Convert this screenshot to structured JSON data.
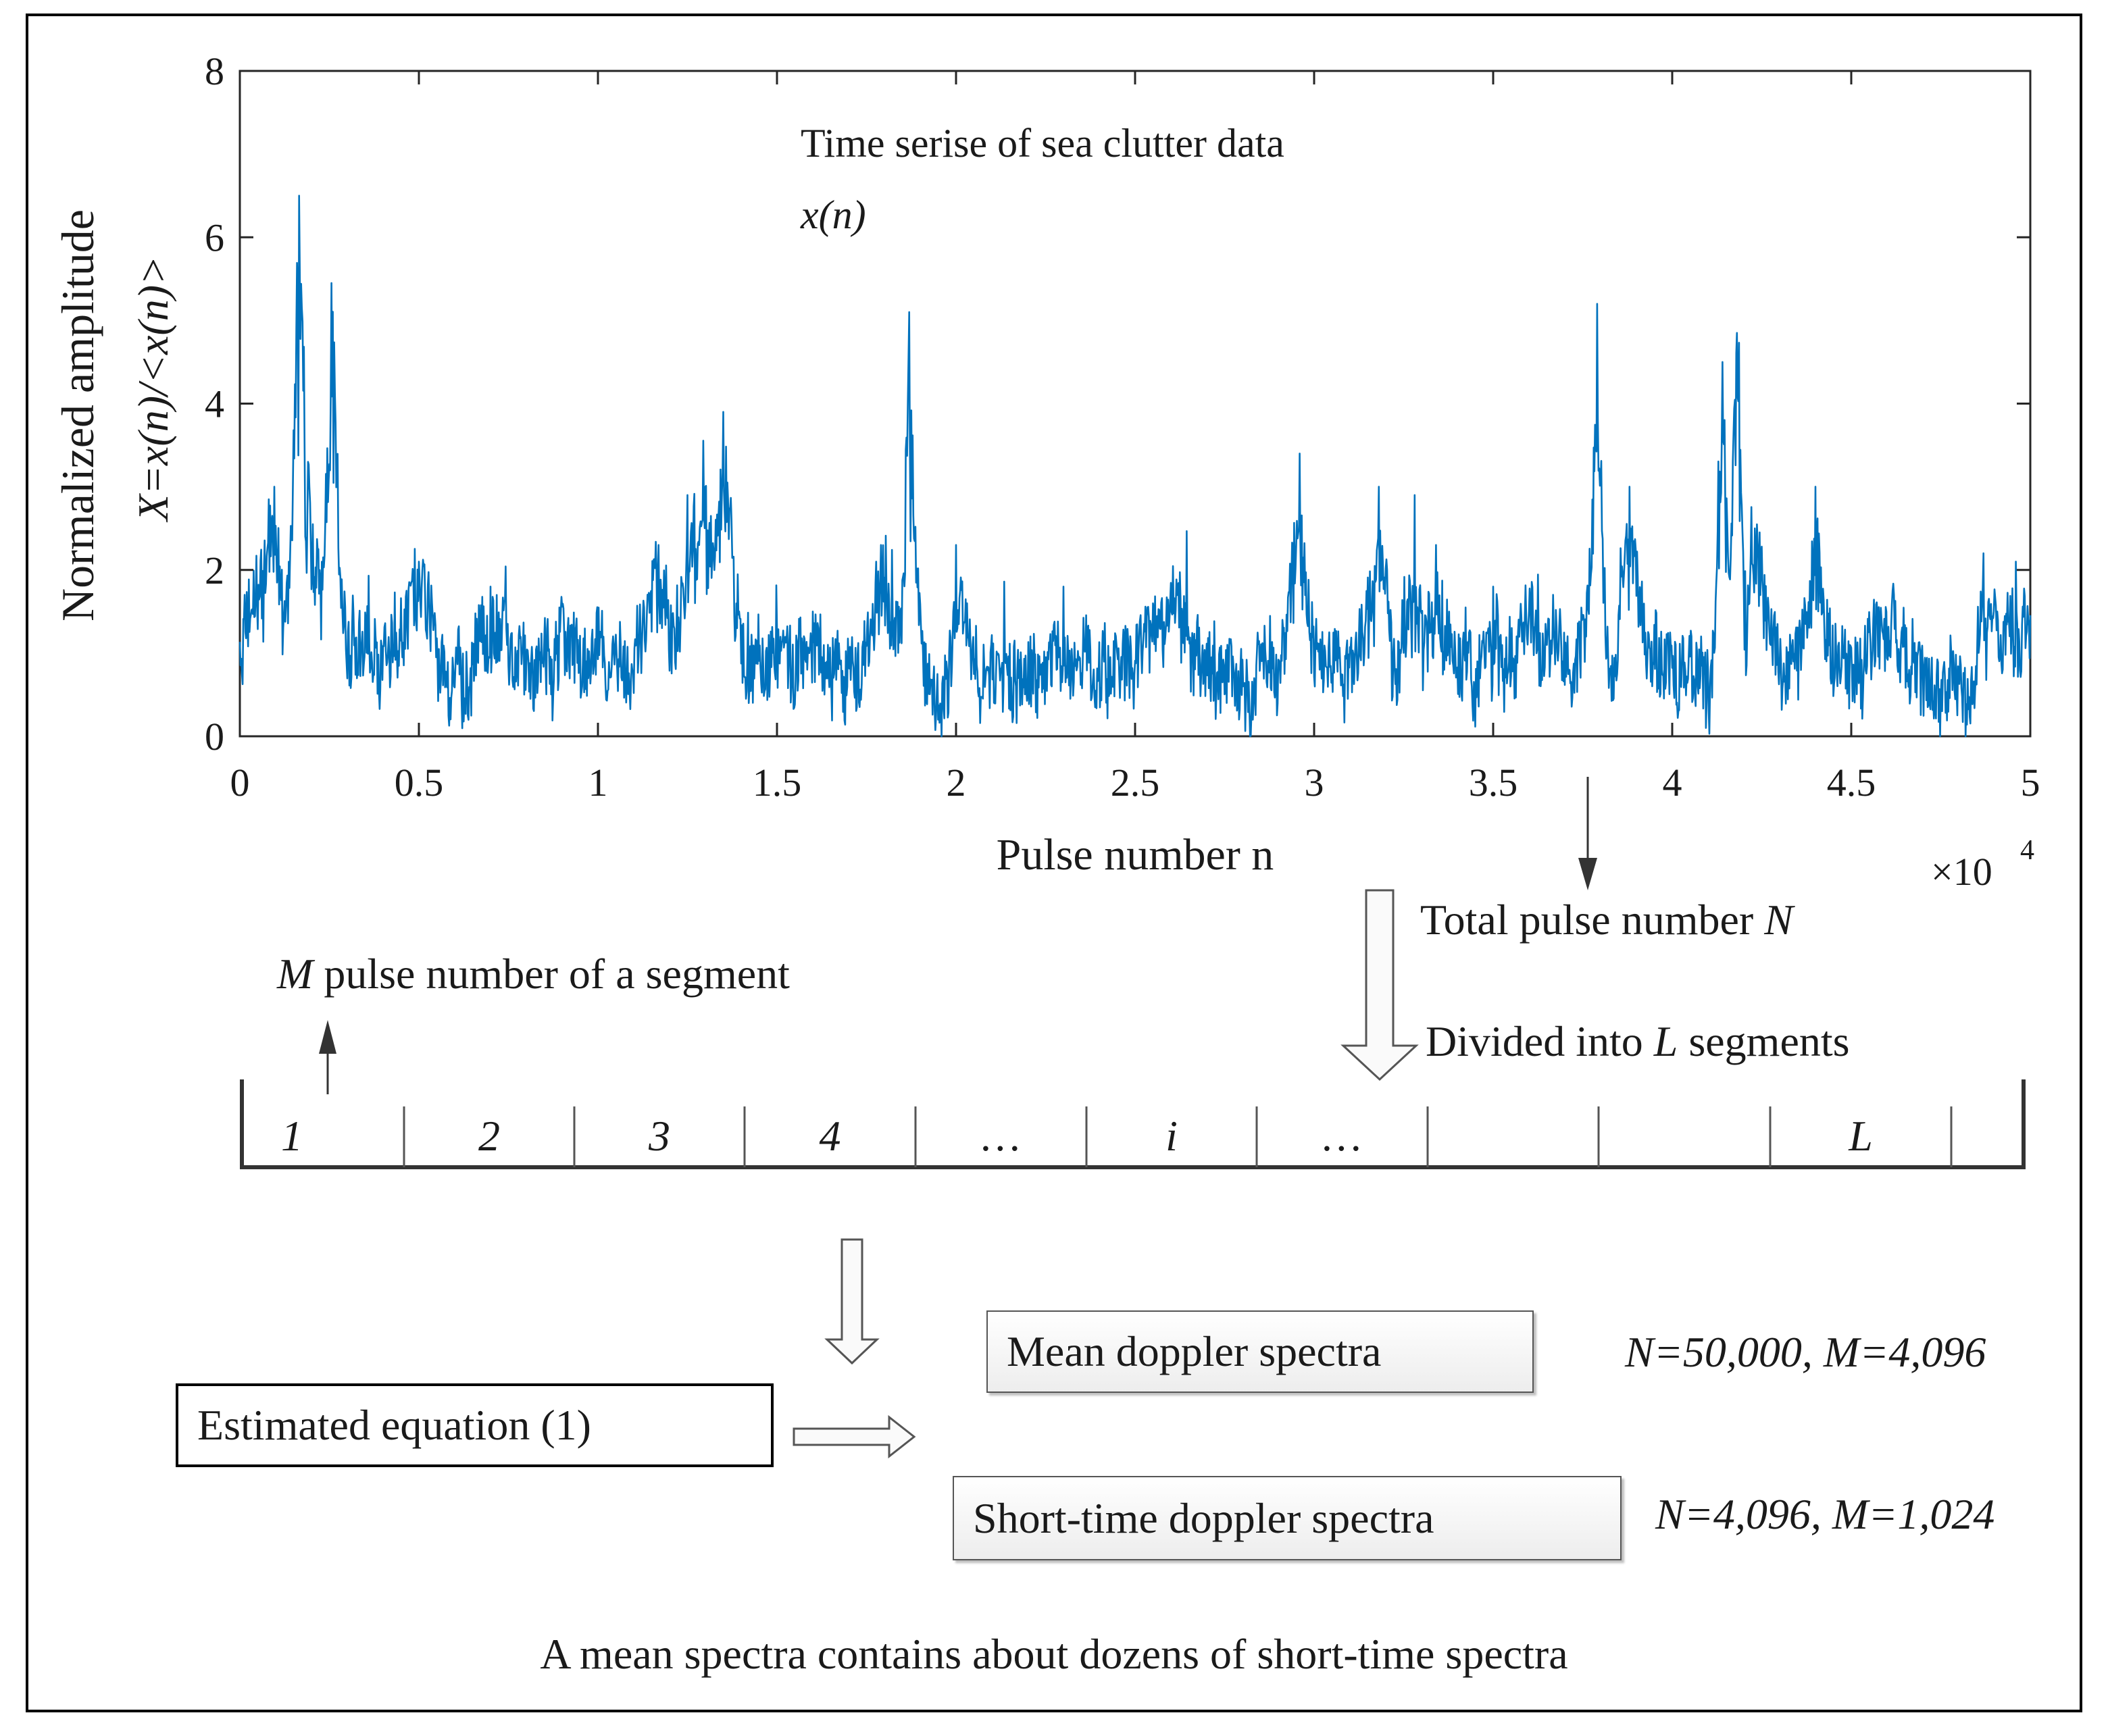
{
  "chart_data": {
    "type": "line",
    "title": "Time serise of sea clutter data",
    "subtitle": "x(n)",
    "xlabel": "Pulse number n",
    "ylabel_line1": "Normalized amplitude",
    "ylabel_line2": "X=x(n)/<x(n)>",
    "x_multiplier_label": "×10",
    "x_multiplier_exp": "4",
    "xlim": [
      0,
      5
    ],
    "ylim": [
      0,
      8
    ],
    "xticks": [
      "0",
      "0.5",
      "1",
      "1.5",
      "2",
      "2.5",
      "3",
      "3.5",
      "4",
      "4.5",
      "5"
    ],
    "yticks": [
      "0",
      "2",
      "4",
      "6",
      "8"
    ],
    "series": [
      {
        "name": "x(n)",
        "color": "#0072bd",
        "peaks": [
          {
            "x": 0.165,
            "y": 6.5
          },
          {
            "x": 0.255,
            "y": 5.45
          },
          {
            "x": 0.19,
            "y": 3.3
          },
          {
            "x": 0.09,
            "y": 2.65
          },
          {
            "x": 0.5,
            "y": 2.1
          },
          {
            "x": 0.7,
            "y": 1.8
          },
          {
            "x": 1.17,
            "y": 2.3
          },
          {
            "x": 1.25,
            "y": 2.9
          },
          {
            "x": 1.3,
            "y": 3.0
          },
          {
            "x": 1.35,
            "y": 3.9
          },
          {
            "x": 1.6,
            "y": 1.5
          },
          {
            "x": 1.79,
            "y": 2.3
          },
          {
            "x": 1.87,
            "y": 5.1
          },
          {
            "x": 2.0,
            "y": 2.3
          },
          {
            "x": 2.3,
            "y": 1.8
          },
          {
            "x": 2.62,
            "y": 1.8
          },
          {
            "x": 2.96,
            "y": 3.4
          },
          {
            "x": 3.18,
            "y": 3.0
          },
          {
            "x": 3.28,
            "y": 2.9
          },
          {
            "x": 3.34,
            "y": 2.3
          },
          {
            "x": 3.5,
            "y": 1.8
          },
          {
            "x": 3.79,
            "y": 5.2
          },
          {
            "x": 3.88,
            "y": 3.0
          },
          {
            "x": 4.14,
            "y": 4.5
          },
          {
            "x": 4.18,
            "y": 4.85
          },
          {
            "x": 4.23,
            "y": 2.5
          },
          {
            "x": 4.4,
            "y": 3.0
          },
          {
            "x": 4.62,
            "y": 1.7
          },
          {
            "x": 4.87,
            "y": 2.2
          },
          {
            "x": 4.96,
            "y": 2.1
          }
        ]
      }
    ]
  },
  "diagram": {
    "total_label": "Total pulse number ",
    "total_var": "N",
    "segment_var": "M",
    "segment_label": " pulse number of a segment",
    "divided_label": "Divided into ",
    "divided_var": "L",
    "divided_suffix": " segments",
    "segments": [
      "1",
      "2",
      "3",
      "4",
      "…",
      "i",
      "…",
      "",
      "",
      "L",
      ""
    ],
    "estimated_box": "Estimated equation (1)",
    "mean_box": "Mean doppler spectra",
    "mean_params": "N=50,000, M=4,096",
    "short_box": "Short-time doppler spectra",
    "short_params": "N=4,096, M=1,024",
    "caption": "A mean spectra contains about dozens of short-time spectra"
  }
}
